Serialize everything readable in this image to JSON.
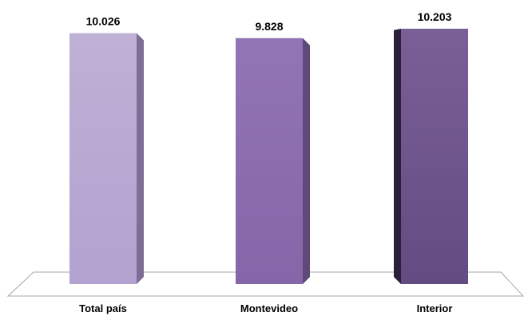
{
  "chart_data": {
    "type": "bar",
    "style": "3d-column",
    "title": "",
    "xlabel": "",
    "ylabel": "",
    "categories": [
      "Total país",
      "Montevideo",
      "Interior"
    ],
    "values": [
      10026,
      9828,
      10203
    ],
    "value_labels": [
      "10.026",
      "9.828",
      "10.203"
    ],
    "ylim": [
      0,
      10203
    ],
    "grid": false,
    "legend": "none",
    "colors": {
      "bars": [
        {
          "front_top": "#BFB0D6",
          "front_bottom": "#B3A1CF",
          "side": "#7D6E95"
        },
        {
          "front_top": "#9275B4",
          "front_bottom": "#8566A8",
          "side": "#5E4A78"
        },
        {
          "front_top": "#7A5F96",
          "front_bottom": "#634C82",
          "side": "#2B1F3B"
        }
      ],
      "floor_stroke": "#A6A6A6"
    }
  }
}
